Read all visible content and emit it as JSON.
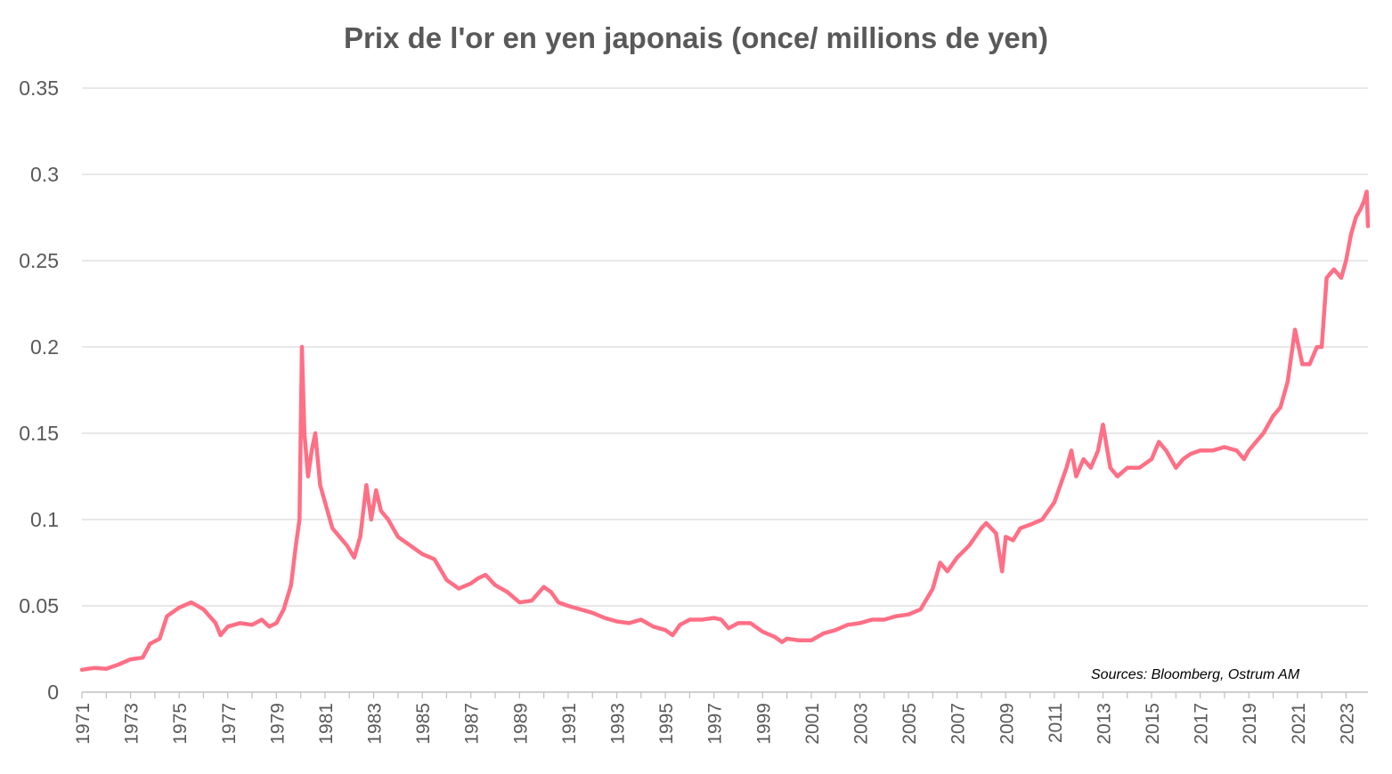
{
  "chart_data": {
    "type": "line",
    "title": "Prix de l'or en yen japonais (once/ millions de yen)",
    "xlabel": "",
    "ylabel": "",
    "source_note": "Sources: Bloomberg, Ostrum AM",
    "x_range": [
      1971.0,
      2023.9
    ],
    "ylim": [
      0,
      0.35
    ],
    "y_ticks": [
      0,
      0.05,
      0.1,
      0.15,
      0.2,
      0.25,
      0.3,
      0.35
    ],
    "y_tick_labels": [
      "0",
      "0.05",
      "0.1",
      "0.15",
      "0.2",
      "0.25",
      "0.3",
      "0.35"
    ],
    "x_tick_labels": [
      "1971",
      "1973",
      "1975",
      "1977",
      "1979",
      "1981",
      "1983",
      "1985",
      "1987",
      "1989",
      "1991",
      "1993",
      "1995",
      "1997",
      "1999",
      "2001",
      "2003",
      "2005",
      "2007",
      "2009",
      "2011",
      "2013",
      "2015",
      "2017",
      "2019",
      "2021",
      "2023"
    ],
    "grid": true,
    "legend": "none",
    "line_color": "#FF6F85",
    "series": [
      {
        "name": "",
        "x": [
          1971.0,
          1971.5,
          1972.0,
          1972.5,
          1973.0,
          1973.5,
          1973.8,
          1974.2,
          1974.5,
          1974.8,
          1975.0,
          1975.5,
          1976.0,
          1976.5,
          1976.7,
          1977.0,
          1977.5,
          1978.0,
          1978.4,
          1978.7,
          1979.0,
          1979.3,
          1979.6,
          1979.8,
          1979.95,
          1980.05,
          1980.15,
          1980.3,
          1980.45,
          1980.6,
          1980.8,
          1981.0,
          1981.3,
          1981.6,
          1981.9,
          1982.2,
          1982.45,
          1982.7,
          1982.9,
          1983.1,
          1983.3,
          1983.6,
          1984.0,
          1984.5,
          1985.0,
          1985.5,
          1986.0,
          1986.5,
          1987.0,
          1987.3,
          1987.6,
          1988.0,
          1988.5,
          1989.0,
          1989.5,
          1990.0,
          1990.3,
          1990.6,
          1991.0,
          1991.5,
          1992.0,
          1992.5,
          1993.0,
          1993.5,
          1994.0,
          1994.5,
          1995.0,
          1995.3,
          1995.6,
          1996.0,
          1996.5,
          1997.0,
          1997.3,
          1997.6,
          1998.0,
          1998.5,
          1999.0,
          1999.5,
          1999.8,
          2000.0,
          2000.5,
          2001.0,
          2001.5,
          2002.0,
          2002.5,
          2003.0,
          2003.5,
          2004.0,
          2004.5,
          2005.0,
          2005.5,
          2006.0,
          2006.3,
          2006.6,
          2007.0,
          2007.5,
          2008.0,
          2008.2,
          2008.6,
          2008.85,
          2009.0,
          2009.3,
          2009.6,
          2010.0,
          2010.5,
          2011.0,
          2011.5,
          2011.7,
          2011.9,
          2012.2,
          2012.5,
          2012.8,
          2013.0,
          2013.3,
          2013.6,
          2014.0,
          2014.5,
          2015.0,
          2015.3,
          2015.6,
          2016.0,
          2016.3,
          2016.6,
          2017.0,
          2017.5,
          2018.0,
          2018.5,
          2018.8,
          2019.0,
          2019.3,
          2019.6,
          2020.0,
          2020.3,
          2020.6,
          2020.9,
          2021.2,
          2021.5,
          2021.8,
          2022.0,
          2022.2,
          2022.5,
          2022.8,
          2023.0,
          2023.2,
          2023.4,
          2023.6,
          2023.75,
          2023.85,
          2023.9
        ],
        "values": [
          0.013,
          0.014,
          0.0135,
          0.016,
          0.019,
          0.02,
          0.028,
          0.031,
          0.044,
          0.047,
          0.049,
          0.052,
          0.048,
          0.04,
          0.033,
          0.038,
          0.04,
          0.039,
          0.042,
          0.038,
          0.04,
          0.048,
          0.062,
          0.085,
          0.1,
          0.2,
          0.15,
          0.125,
          0.14,
          0.15,
          0.12,
          0.11,
          0.095,
          0.09,
          0.085,
          0.078,
          0.09,
          0.12,
          0.1,
          0.117,
          0.105,
          0.1,
          0.09,
          0.085,
          0.08,
          0.077,
          0.065,
          0.06,
          0.063,
          0.066,
          0.068,
          0.062,
          0.058,
          0.052,
          0.053,
          0.061,
          0.058,
          0.052,
          0.05,
          0.048,
          0.046,
          0.043,
          0.041,
          0.04,
          0.042,
          0.038,
          0.036,
          0.033,
          0.039,
          0.042,
          0.042,
          0.043,
          0.042,
          0.037,
          0.04,
          0.04,
          0.035,
          0.032,
          0.029,
          0.031,
          0.03,
          0.03,
          0.034,
          0.036,
          0.039,
          0.04,
          0.042,
          0.042,
          0.044,
          0.045,
          0.048,
          0.06,
          0.075,
          0.07,
          0.078,
          0.085,
          0.095,
          0.098,
          0.092,
          0.07,
          0.09,
          0.088,
          0.095,
          0.097,
          0.1,
          0.11,
          0.13,
          0.14,
          0.125,
          0.135,
          0.13,
          0.14,
          0.155,
          0.13,
          0.125,
          0.13,
          0.13,
          0.135,
          0.145,
          0.14,
          0.13,
          0.135,
          0.138,
          0.14,
          0.14,
          0.142,
          0.14,
          0.135,
          0.14,
          0.145,
          0.15,
          0.16,
          0.165,
          0.18,
          0.21,
          0.19,
          0.19,
          0.2,
          0.2,
          0.24,
          0.245,
          0.24,
          0.25,
          0.265,
          0.275,
          0.28,
          0.285,
          0.29,
          0.27
        ]
      }
    ]
  }
}
